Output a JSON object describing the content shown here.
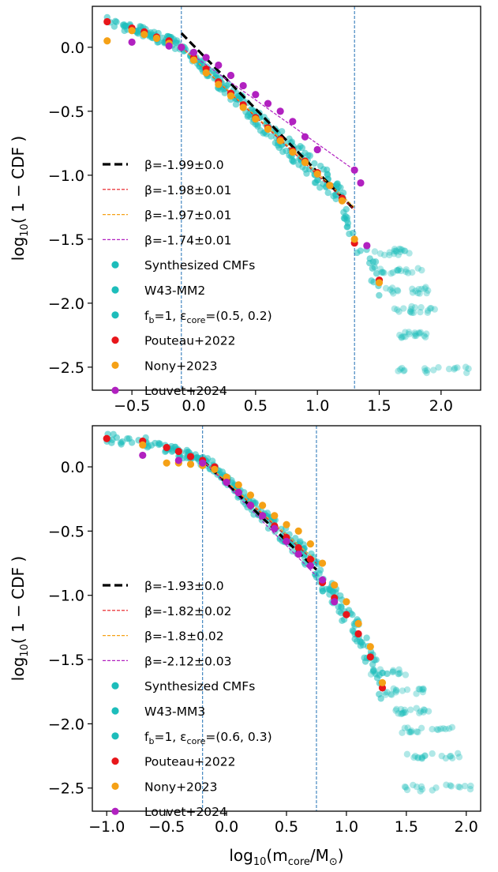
{
  "colors": {
    "teal": "#1dbdbb",
    "red": "#e8161b",
    "orange": "#f5a116",
    "magenta": "#b121c0",
    "fit_black": "#000000",
    "vline": "#1f6fb4"
  },
  "chart_data": [
    {
      "type": "scatter",
      "panel": "top",
      "xlabel": "",
      "ylabel": "log10( 1 − CDF )",
      "xlim": [
        -0.82,
        2.32
      ],
      "ylim": [
        -2.68,
        0.32
      ],
      "xticks": [
        -0.5,
        0.0,
        0.5,
        1.0,
        1.5,
        2.0
      ],
      "xtick_labels": [
        "−0.5",
        "0.0",
        "0.5",
        "1.0",
        "1.5",
        "2.0"
      ],
      "yticks": [
        0.0,
        -0.5,
        -1.0,
        -1.5,
        -2.0,
        -2.5
      ],
      "ytick_labels": [
        "0.0",
        "−0.5",
        "−1.0",
        "−1.5",
        "−2.0",
        "−2.5"
      ],
      "vlines": [
        -0.1,
        1.3
      ],
      "fits": [
        {
          "name": "β=-1.99±0.0",
          "style": "black",
          "x": [
            -0.1,
            1.3
          ],
          "y": [
            0.11,
            -1.27
          ]
        },
        {
          "name": "β=-1.98±0.01",
          "style": "red",
          "x": [
            -0.1,
            1.3
          ],
          "y": [
            0.0,
            -1.27
          ]
        },
        {
          "name": "β=-1.97±0.01",
          "style": "orange",
          "x": [
            -0.1,
            1.3
          ],
          "y": [
            0.0,
            -1.25
          ]
        },
        {
          "name": "β=-1.74±0.01",
          "style": "magenta",
          "x": [
            -0.1,
            1.3
          ],
          "y": [
            0.0,
            -0.96
          ]
        }
      ],
      "series": [
        {
          "name": "Pouteau+2022",
          "color": "red",
          "x": [
            -0.7,
            -0.5,
            -0.4,
            -0.3,
            -0.2,
            -0.1,
            0.0,
            0.1,
            0.2,
            0.3,
            0.4,
            0.5,
            0.6,
            0.7,
            0.8,
            0.9,
            1.0,
            1.1,
            1.2,
            1.3,
            1.5
          ],
          "y": [
            0.2,
            0.15,
            0.12,
            0.08,
            0.05,
            0.0,
            -0.08,
            -0.17,
            -0.27,
            -0.36,
            -0.45,
            -0.55,
            -0.63,
            -0.72,
            -0.81,
            -0.89,
            -0.98,
            -1.08,
            -1.18,
            -1.53,
            -1.82
          ]
        },
        {
          "name": "Nony+2023",
          "color": "orange",
          "x": [
            -0.7,
            -0.5,
            -0.4,
            -0.3,
            -0.2,
            -0.1,
            0.0,
            0.1,
            0.2,
            0.3,
            0.4,
            0.5,
            0.6,
            0.7,
            0.8,
            0.9,
            1.0,
            1.1,
            1.2,
            1.3,
            1.5
          ],
          "y": [
            0.05,
            0.13,
            0.1,
            0.07,
            0.03,
            0.0,
            -0.1,
            -0.2,
            -0.29,
            -0.38,
            -0.47,
            -0.56,
            -0.64,
            -0.73,
            -0.82,
            -0.9,
            -0.99,
            -1.08,
            -1.2,
            -1.5,
            -1.84
          ]
        },
        {
          "name": "Louvet+2024",
          "color": "magenta",
          "x": [
            -0.5,
            -0.2,
            -0.1,
            0.0,
            0.1,
            0.2,
            0.3,
            0.4,
            0.5,
            0.6,
            0.7,
            0.8,
            0.9,
            1.0,
            1.3,
            1.35,
            1.4
          ],
          "y": [
            0.04,
            0.01,
            0.0,
            -0.04,
            -0.08,
            -0.14,
            -0.22,
            -0.3,
            -0.37,
            -0.44,
            -0.5,
            -0.58,
            -0.7,
            -0.8,
            -0.96,
            -1.06,
            -1.55
          ]
        }
      ],
      "synth_bands": [
        {
          "x": [
            1.45,
            1.75
          ],
          "y": -1.6
        },
        {
          "x": [
            1.5,
            1.85
          ],
          "y": -1.75
        },
        {
          "x": [
            1.55,
            1.9
          ],
          "y": -1.9
        },
        {
          "x": [
            1.6,
            1.95
          ],
          "y": -2.05
        },
        {
          "x": [
            1.65,
            1.9
          ],
          "y": -2.25
        },
        {
          "x": [
            1.65,
            2.25
          ],
          "y": -2.52
        }
      ],
      "legend": [
        {
          "label": "β=-1.99±0.0",
          "marker": "black-line"
        },
        {
          "label": "β=-1.98±0.01",
          "marker": "red-line"
        },
        {
          "label": "β=-1.97±0.01",
          "marker": "orange-line"
        },
        {
          "label": "β=-1.74±0.01",
          "marker": "magenta-line"
        },
        {
          "label": "Synthesized CMFs",
          "marker": "teal-dot"
        },
        {
          "label": "W43-MM2",
          "marker": "teal-dot"
        },
        {
          "label": "fb=1, εcore=(0.5, 0.2)",
          "marker": "teal-dot"
        },
        {
          "label": "Pouteau+2022",
          "marker": "red-dot"
        },
        {
          "label": "Nony+2023",
          "marker": "orange-dot"
        },
        {
          "label": "Louvet+2024",
          "marker": "magenta-dot"
        }
      ]
    },
    {
      "type": "scatter",
      "panel": "bottom",
      "xlabel": "log10(mcore/M⊙)",
      "ylabel": "log10( 1 − CDF )",
      "xlim": [
        -1.12,
        2.12
      ],
      "ylim": [
        -2.68,
        0.32
      ],
      "xticks": [
        -1.0,
        -0.5,
        0.0,
        0.5,
        1.0,
        1.5,
        2.0
      ],
      "xtick_labels": [
        "−1.0",
        "−0.5",
        "0.0",
        "0.5",
        "1.0",
        "1.5",
        "2.0"
      ],
      "yticks": [
        0.0,
        -0.5,
        -1.0,
        -1.5,
        -2.0,
        -2.5
      ],
      "ytick_labels": [
        "0.0",
        "−0.5",
        "−1.0",
        "−1.5",
        "−2.0",
        "−2.5"
      ],
      "vlines": [
        -0.2,
        0.75
      ],
      "fits": [
        {
          "name": "β=-1.93±0.0",
          "style": "black",
          "x": [
            -0.2,
            0.75
          ],
          "y": [
            0.05,
            -0.8
          ]
        },
        {
          "name": "β=-1.82±0.02",
          "style": "red",
          "x": [
            -0.2,
            0.75
          ],
          "y": [
            0.05,
            -0.75
          ]
        },
        {
          "name": "β=-1.8±0.02",
          "style": "orange",
          "x": [
            -0.2,
            0.75
          ],
          "y": [
            0.05,
            -0.73
          ]
        },
        {
          "name": "β=-2.12±0.03",
          "style": "magenta",
          "x": [
            -0.2,
            0.75
          ],
          "y": [
            0.05,
            -0.85
          ]
        }
      ],
      "series": [
        {
          "name": "Pouteau+2022",
          "color": "red",
          "x": [
            -1.0,
            -0.7,
            -0.5,
            -0.4,
            -0.3,
            -0.2,
            -0.1,
            0.0,
            0.1,
            0.2,
            0.3,
            0.4,
            0.5,
            0.6,
            0.7,
            0.8,
            0.9,
            1.0,
            1.1,
            1.2,
            1.3
          ],
          "y": [
            0.22,
            0.2,
            0.15,
            0.12,
            0.08,
            0.05,
            0.0,
            -0.1,
            -0.2,
            -0.3,
            -0.38,
            -0.46,
            -0.55,
            -0.63,
            -0.72,
            -0.9,
            -1.02,
            -1.15,
            -1.3,
            -1.48,
            -1.72
          ]
        },
        {
          "name": "Nony+2023",
          "color": "orange",
          "x": [
            -0.7,
            -0.5,
            -0.4,
            -0.3,
            -0.2,
            -0.1,
            0.0,
            0.1,
            0.2,
            0.3,
            0.4,
            0.5,
            0.6,
            0.7,
            0.8,
            0.9,
            1.0,
            1.1,
            1.2,
            1.3
          ],
          "y": [
            0.17,
            0.03,
            0.03,
            0.02,
            0.01,
            -0.02,
            -0.08,
            -0.14,
            -0.22,
            -0.3,
            -0.38,
            -0.45,
            -0.5,
            -0.6,
            -0.75,
            -0.92,
            -1.05,
            -1.22,
            -1.4,
            -1.68
          ]
        },
        {
          "name": "Louvet+2024",
          "color": "magenta",
          "x": [
            -0.7,
            -0.4,
            -0.2,
            0.0,
            0.1,
            0.2,
            0.3,
            0.4,
            0.5,
            0.6,
            0.7,
            0.8,
            0.9
          ],
          "y": [
            0.09,
            0.05,
            0.03,
            -0.12,
            -0.2,
            -0.3,
            -0.38,
            -0.48,
            -0.58,
            -0.68,
            -0.77,
            -0.88,
            -1.05
          ]
        }
      ],
      "synth_bands": [
        {
          "x": [
            1.2,
            1.5
          ],
          "y": -1.6
        },
        {
          "x": [
            1.3,
            1.65
          ],
          "y": -1.75
        },
        {
          "x": [
            1.4,
            1.75
          ],
          "y": -1.9
        },
        {
          "x": [
            1.45,
            1.9
          ],
          "y": -2.05
        },
        {
          "x": [
            1.5,
            1.95
          ],
          "y": -2.25
        },
        {
          "x": [
            1.45,
            2.05
          ],
          "y": -2.5
        }
      ],
      "legend": [
        {
          "label": "β=-1.93±0.0",
          "marker": "black-line"
        },
        {
          "label": "β=-1.82±0.02",
          "marker": "red-line"
        },
        {
          "label": "β=-1.8±0.02",
          "marker": "orange-line"
        },
        {
          "label": "β=-2.12±0.03",
          "marker": "magenta-line"
        },
        {
          "label": "Synthesized CMFs",
          "marker": "teal-dot"
        },
        {
          "label": "W43-MM3",
          "marker": "teal-dot"
        },
        {
          "label": "fb=1, εcore=(0.6, 0.3)",
          "marker": "teal-dot"
        },
        {
          "label": "Pouteau+2022",
          "marker": "red-dot"
        },
        {
          "label": "Nony+2023",
          "marker": "orange-dot"
        },
        {
          "label": "Louvet+2024",
          "marker": "magenta-dot"
        }
      ]
    }
  ]
}
